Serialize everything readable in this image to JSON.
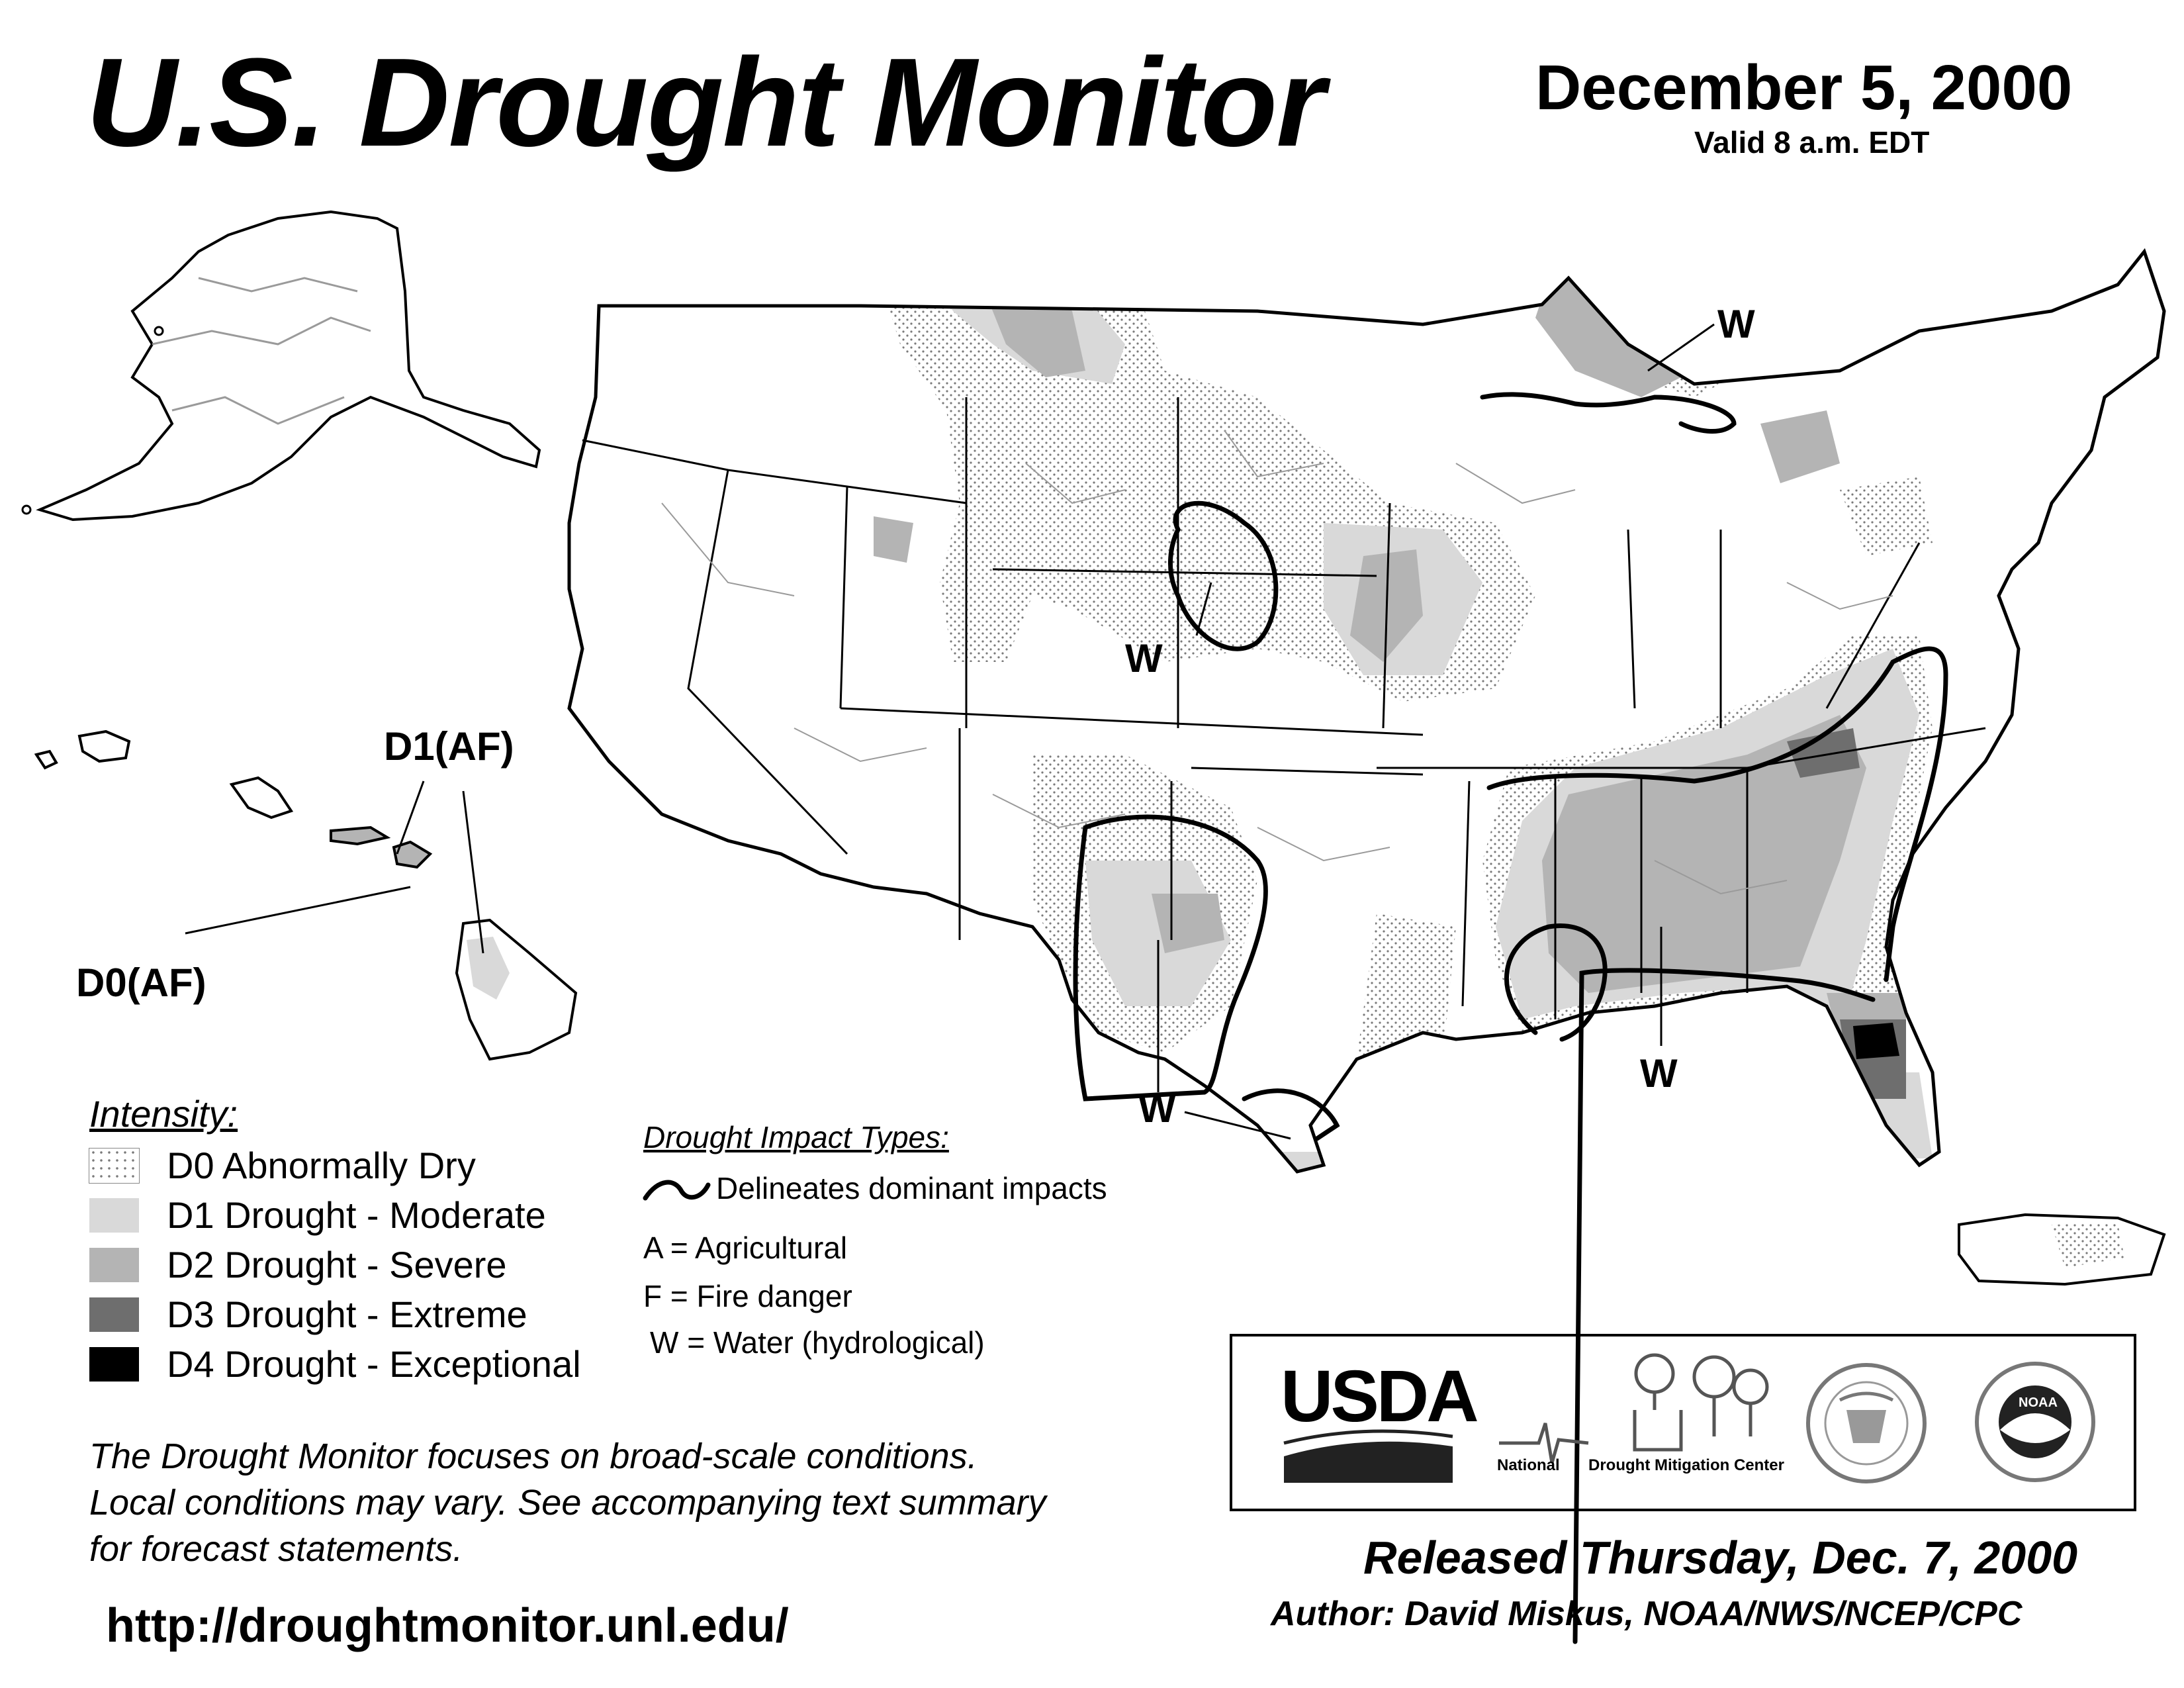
{
  "title": "U.S. Drought Monitor",
  "date": "December 5, 2000",
  "valid": "Valid 8 a.m. EDT",
  "colors": {
    "D0": "#ffffff",
    "D1": "#d9d9d9",
    "D2": "#b4b4b4",
    "D3": "#6e6e6e",
    "D4": "#000000",
    "boundary": "#000000",
    "state_line": "#000000",
    "county_line": "#9a9a9a"
  },
  "map_labels": {
    "w_great_lakes": "W",
    "w_central_plains": "W",
    "w_texas": "W",
    "w_southeast": "W",
    "hawaii_d1": "D1(AF)",
    "hawaii_d0": "D0(AF)"
  },
  "legend": {
    "heading": "Intensity:",
    "items": [
      {
        "code": "D0",
        "label": "D0 Abnormally Dry",
        "swatch": "dotted-pattern"
      },
      {
        "code": "D1",
        "label": "D1 Drought - Moderate",
        "swatch": "light-gray"
      },
      {
        "code": "D2",
        "label": "D2 Drought - Severe",
        "swatch": "medium-gray"
      },
      {
        "code": "D3",
        "label": "D3 Drought - Extreme",
        "swatch": "dark-gray"
      },
      {
        "code": "D4",
        "label": "D4 Drought - Exceptional",
        "swatch": "black"
      }
    ]
  },
  "impacts": {
    "heading": "Drought Impact Types:",
    "line_label": "Delineates dominant impacts",
    "types": [
      "A = Agricultural",
      "F = Fire danger",
      "W = Water (hydrological)"
    ]
  },
  "note": {
    "lines": [
      "The Drought Monitor focuses on broad-scale conditions.",
      "Local conditions may vary. See accompanying text summary",
      "for forecast statements."
    ]
  },
  "url": "http://droughtmonitor.unl.edu/",
  "logos": {
    "usda": "USDA",
    "ndmc_left": "National",
    "ndmc_right": "Drought Mitigation Center",
    "commerce_seal": "Department of Commerce seal",
    "noaa": "NOAA"
  },
  "released": "Released Thursday, Dec. 7, 2000",
  "author": "Author: David Miskus, NOAA/NWS/NCEP/CPC"
}
